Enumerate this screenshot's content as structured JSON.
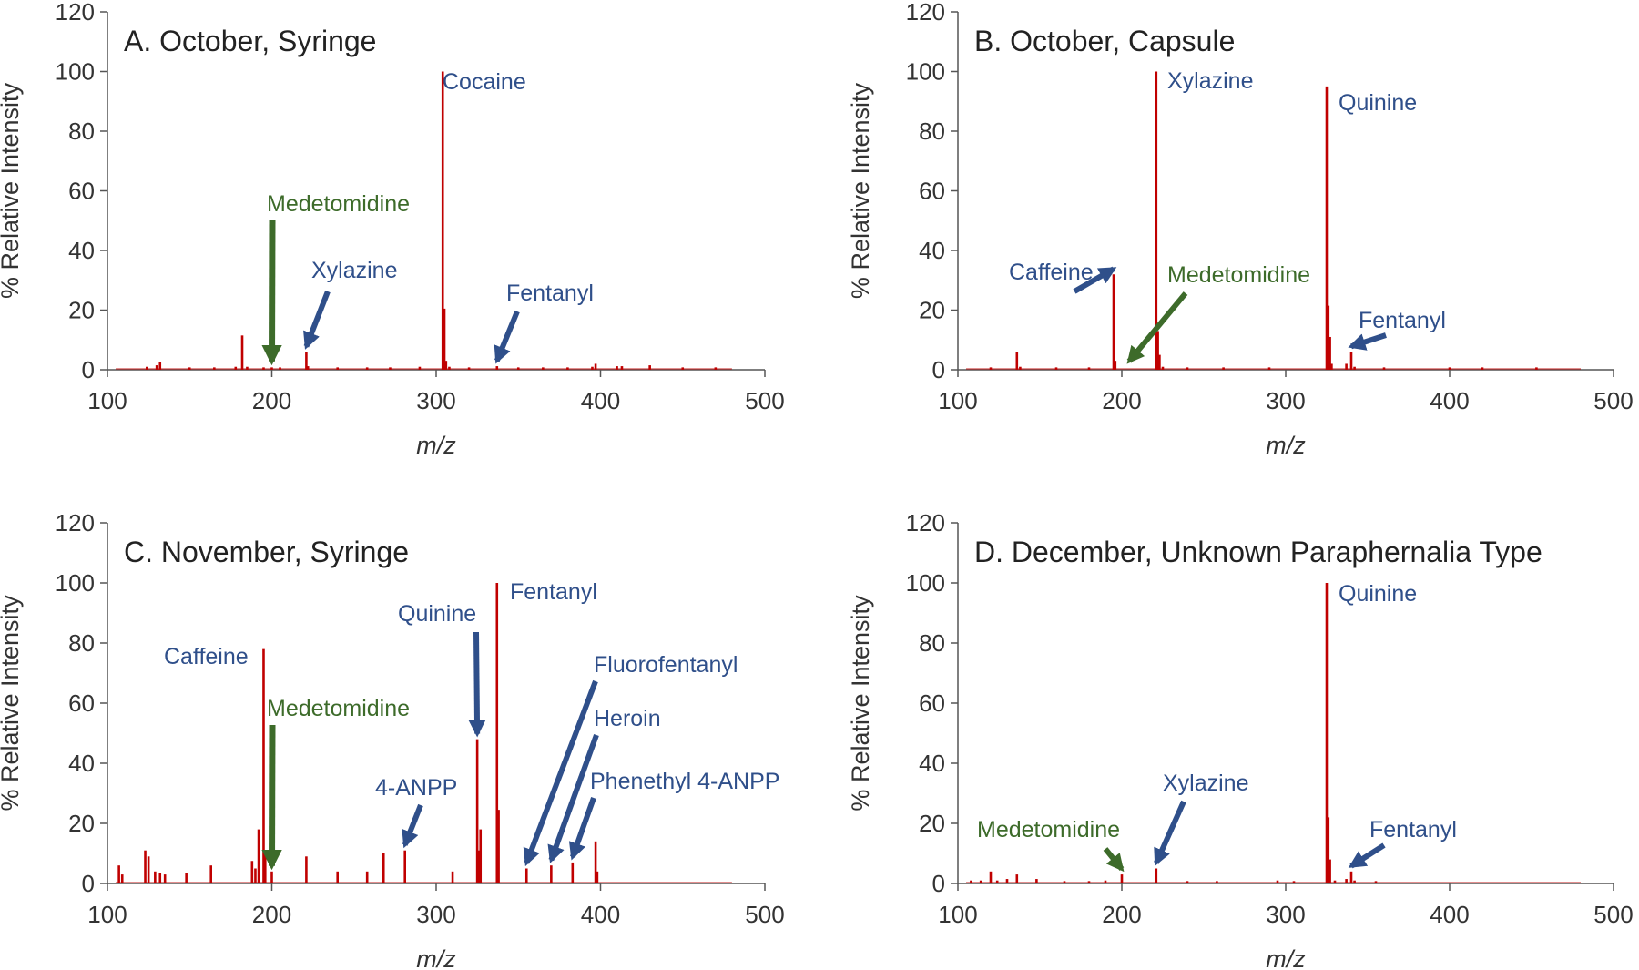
{
  "chart_data": [
    {
      "type": "bar",
      "title": "A. October, Syringe",
      "xlabel": "m/z",
      "ylabel": "% Relative Intensity",
      "xlim": [
        100,
        500
      ],
      "ylim": [
        0,
        120
      ],
      "xticks": [
        100,
        200,
        300,
        400,
        500
      ],
      "yticks": [
        0,
        20,
        40,
        60,
        80,
        100,
        120
      ],
      "peaks": [
        {
          "mz": 124,
          "y": 1
        },
        {
          "mz": 130,
          "y": 1.5
        },
        {
          "mz": 132,
          "y": 2.5
        },
        {
          "mz": 150,
          "y": 0.8
        },
        {
          "mz": 165,
          "y": 0.8
        },
        {
          "mz": 178,
          "y": 1
        },
        {
          "mz": 182,
          "y": 11.5
        },
        {
          "mz": 185,
          "y": 1
        },
        {
          "mz": 195,
          "y": 0.8
        },
        {
          "mz": 200,
          "y": 0.8
        },
        {
          "mz": 205,
          "y": 0.8
        },
        {
          "mz": 221,
          "y": 6
        },
        {
          "mz": 222,
          "y": 1.2
        },
        {
          "mz": 240,
          "y": 0.8
        },
        {
          "mz": 258,
          "y": 0.8
        },
        {
          "mz": 272,
          "y": 0.8
        },
        {
          "mz": 290,
          "y": 1
        },
        {
          "mz": 304,
          "y": 100
        },
        {
          "mz": 305,
          "y": 20.5
        },
        {
          "mz": 306,
          "y": 3
        },
        {
          "mz": 308,
          "y": 1
        },
        {
          "mz": 320,
          "y": 0.8
        },
        {
          "mz": 337,
          "y": 1.2
        },
        {
          "mz": 350,
          "y": 0.8
        },
        {
          "mz": 365,
          "y": 0.8
        },
        {
          "mz": 380,
          "y": 0.8
        },
        {
          "mz": 395,
          "y": 1
        },
        {
          "mz": 397,
          "y": 2
        },
        {
          "mz": 410,
          "y": 1.2
        },
        {
          "mz": 413,
          "y": 1.2
        },
        {
          "mz": 430,
          "y": 1.5
        },
        {
          "mz": 450,
          "y": 0.8
        },
        {
          "mz": 470,
          "y": 0.8
        }
      ],
      "annotations": [
        {
          "text": "Cocaine",
          "color": "#2f4f8a",
          "mz": 304,
          "y": 100,
          "arrow": false
        },
        {
          "text": "Medetomidine",
          "color": "#3d6b2a",
          "mz": 200,
          "y": 1,
          "arrow": true
        },
        {
          "text": "Xylazine",
          "color": "#2f4f8a",
          "mz": 221,
          "y": 6,
          "arrow": true
        },
        {
          "text": "Fentanyl",
          "color": "#2f4f8a",
          "mz": 337,
          "y": 1.2,
          "arrow": true
        }
      ]
    },
    {
      "type": "bar",
      "title": "B. October, Capsule",
      "xlabel": "m/z",
      "ylabel": "% Relative Intensity",
      "xlim": [
        100,
        500
      ],
      "ylim": [
        0,
        120
      ],
      "xticks": [
        100,
        200,
        300,
        400,
        500
      ],
      "yticks": [
        0,
        20,
        40,
        60,
        80,
        100,
        120
      ],
      "peaks": [
        {
          "mz": 120,
          "y": 0.8
        },
        {
          "mz": 136,
          "y": 6
        },
        {
          "mz": 138,
          "y": 1
        },
        {
          "mz": 160,
          "y": 0.8
        },
        {
          "mz": 180,
          "y": 0.8
        },
        {
          "mz": 195,
          "y": 32
        },
        {
          "mz": 196,
          "y": 3
        },
        {
          "mz": 221,
          "y": 100
        },
        {
          "mz": 222,
          "y": 13
        },
        {
          "mz": 223,
          "y": 5
        },
        {
          "mz": 225,
          "y": 1
        },
        {
          "mz": 240,
          "y": 0.8
        },
        {
          "mz": 262,
          "y": 0.8
        },
        {
          "mz": 290,
          "y": 0.8
        },
        {
          "mz": 325,
          "y": 95
        },
        {
          "mz": 326,
          "y": 21.5
        },
        {
          "mz": 327,
          "y": 11
        },
        {
          "mz": 328,
          "y": 2
        },
        {
          "mz": 337,
          "y": 2
        },
        {
          "mz": 340,
          "y": 6
        },
        {
          "mz": 342,
          "y": 1
        },
        {
          "mz": 360,
          "y": 0.8
        },
        {
          "mz": 400,
          "y": 0.8
        },
        {
          "mz": 420,
          "y": 0.8
        },
        {
          "mz": 453,
          "y": 0.8
        }
      ],
      "annotations": [
        {
          "text": "Xylazine",
          "color": "#2f4f8a",
          "mz": 221,
          "y": 100,
          "arrow": false
        },
        {
          "text": "Quinine",
          "color": "#2f4f8a",
          "mz": 325,
          "y": 95,
          "arrow": false
        },
        {
          "text": "Caffeine",
          "color": "#2f4f8a",
          "mz": 195,
          "y": 32,
          "arrow": true
        },
        {
          "text": "Medetomidine",
          "color": "#3d6b2a",
          "mz": 200,
          "y": 1,
          "arrow": true
        },
        {
          "text": "Fentanyl",
          "color": "#2f4f8a",
          "mz": 340,
          "y": 6,
          "arrow": true
        }
      ]
    },
    {
      "type": "bar",
      "title": "C. November, Syringe",
      "xlabel": "m/z",
      "ylabel": "% Relative Intensity",
      "xlim": [
        100,
        500
      ],
      "ylim": [
        0,
        120
      ],
      "xticks": [
        100,
        200,
        300,
        400,
        500
      ],
      "yticks": [
        0,
        20,
        40,
        60,
        80,
        100,
        120
      ],
      "peaks": [
        {
          "mz": 107,
          "y": 6
        },
        {
          "mz": 109,
          "y": 3
        },
        {
          "mz": 123,
          "y": 11
        },
        {
          "mz": 125,
          "y": 9
        },
        {
          "mz": 129,
          "y": 4
        },
        {
          "mz": 132,
          "y": 3.5
        },
        {
          "mz": 135,
          "y": 3
        },
        {
          "mz": 148,
          "y": 3.5
        },
        {
          "mz": 163,
          "y": 6
        },
        {
          "mz": 188,
          "y": 7.5
        },
        {
          "mz": 190,
          "y": 5
        },
        {
          "mz": 192,
          "y": 18
        },
        {
          "mz": 195,
          "y": 78
        },
        {
          "mz": 196,
          "y": 10
        },
        {
          "mz": 200,
          "y": 4
        },
        {
          "mz": 221,
          "y": 9
        },
        {
          "mz": 240,
          "y": 4
        },
        {
          "mz": 258,
          "y": 4
        },
        {
          "mz": 268,
          "y": 10
        },
        {
          "mz": 281,
          "y": 11
        },
        {
          "mz": 310,
          "y": 4
        },
        {
          "mz": 325,
          "y": 48
        },
        {
          "mz": 326,
          "y": 11
        },
        {
          "mz": 327,
          "y": 18
        },
        {
          "mz": 337,
          "y": 100
        },
        {
          "mz": 338,
          "y": 24.5
        },
        {
          "mz": 355,
          "y": 5
        },
        {
          "mz": 370,
          "y": 6
        },
        {
          "mz": 383,
          "y": 7
        },
        {
          "mz": 397,
          "y": 14
        },
        {
          "mz": 398,
          "y": 4
        }
      ],
      "annotations": [
        {
          "text": "Fentanyl",
          "color": "#2f4f8a",
          "mz": 337,
          "y": 100,
          "arrow": false
        },
        {
          "text": "Caffeine",
          "color": "#2f4f8a",
          "mz": 195,
          "y": 78,
          "arrow": false
        },
        {
          "text": "Quinine",
          "color": "#2f4f8a",
          "mz": 325,
          "y": 48,
          "arrow": true
        },
        {
          "text": "Medetomidine",
          "color": "#3d6b2a",
          "mz": 200,
          "y": 4,
          "arrow": true
        },
        {
          "text": "4-ANPP",
          "color": "#2f4f8a",
          "mz": 281,
          "y": 11,
          "arrow": true
        },
        {
          "text": "Fluorofentanyl",
          "color": "#2f4f8a",
          "mz": 355,
          "y": 5,
          "arrow": true
        },
        {
          "text": "Heroin",
          "color": "#2f4f8a",
          "mz": 370,
          "y": 6,
          "arrow": true
        },
        {
          "text": "Phenethyl 4-ANPP",
          "color": "#2f4f8a",
          "mz": 383,
          "y": 7,
          "arrow": true
        }
      ]
    },
    {
      "type": "bar",
      "title": "D. December, Unknown Paraphernalia Type",
      "xlabel": "m/z",
      "ylabel": "% Relative Intensity",
      "xlim": [
        100,
        500
      ],
      "ylim": [
        0,
        120
      ],
      "xticks": [
        100,
        200,
        300,
        400,
        500
      ],
      "yticks": [
        0,
        20,
        40,
        60,
        80,
        100,
        120
      ],
      "peaks": [
        {
          "mz": 108,
          "y": 1
        },
        {
          "mz": 114,
          "y": 1
        },
        {
          "mz": 120,
          "y": 4
        },
        {
          "mz": 124,
          "y": 1
        },
        {
          "mz": 130,
          "y": 1.5
        },
        {
          "mz": 136,
          "y": 3
        },
        {
          "mz": 148,
          "y": 1.5
        },
        {
          "mz": 165,
          "y": 0.8
        },
        {
          "mz": 180,
          "y": 0.8
        },
        {
          "mz": 190,
          "y": 1
        },
        {
          "mz": 200,
          "y": 3
        },
        {
          "mz": 221,
          "y": 5
        },
        {
          "mz": 240,
          "y": 0.8
        },
        {
          "mz": 258,
          "y": 0.8
        },
        {
          "mz": 295,
          "y": 1
        },
        {
          "mz": 305,
          "y": 0.8
        },
        {
          "mz": 325,
          "y": 100
        },
        {
          "mz": 326,
          "y": 22
        },
        {
          "mz": 327,
          "y": 8
        },
        {
          "mz": 330,
          "y": 1
        },
        {
          "mz": 337,
          "y": 1.5
        },
        {
          "mz": 340,
          "y": 4
        },
        {
          "mz": 342,
          "y": 1
        },
        {
          "mz": 355,
          "y": 0.8
        }
      ],
      "annotations": [
        {
          "text": "Quinine",
          "color": "#2f4f8a",
          "mz": 325,
          "y": 100,
          "arrow": false
        },
        {
          "text": "Medetomidine",
          "color": "#3d6b2a",
          "mz": 200,
          "y": 3,
          "arrow": true
        },
        {
          "text": "Xylazine",
          "color": "#2f4f8a",
          "mz": 221,
          "y": 5,
          "arrow": true
        },
        {
          "text": "Fentanyl",
          "color": "#2f4f8a",
          "mz": 340,
          "y": 4,
          "arrow": true
        }
      ]
    }
  ],
  "colors": {
    "peak": "#c00000",
    "axis": "#555555",
    "text": "#333333",
    "blue_label": "#2f4f8a",
    "green_label": "#3d6b2a"
  }
}
